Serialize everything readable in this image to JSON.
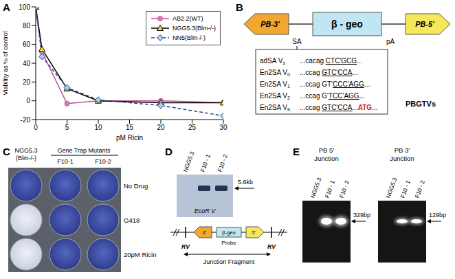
{
  "panel_labels": [
    "A",
    "B",
    "C",
    "D",
    "E"
  ],
  "chart_data": {
    "type": "line",
    "x_label": "pM Ricin",
    "y_label": "Viability as % of control",
    "x": [
      0,
      1,
      5,
      10,
      20,
      30
    ],
    "xlim": [
      0,
      30
    ],
    "xticks": [
      0,
      5,
      10,
      15,
      20,
      25,
      30
    ],
    "ylim": [
      -20,
      100
    ],
    "yticks": [
      -20,
      0,
      20,
      40,
      60,
      80,
      100
    ],
    "grid": false,
    "legend": "upper right",
    "series": [
      {
        "name": "AB2.2(WT)",
        "color": "#c0508f",
        "marker": "circle",
        "line_style": "solid",
        "values": [
          100,
          52,
          -3,
          0,
          0,
          -2
        ]
      },
      {
        "name": "NGG5.3(Blm-/-)",
        "color": "#000000",
        "marker": "triangle",
        "line_style": "solid",
        "values": [
          100,
          55,
          13,
          0,
          -2,
          -2
        ]
      },
      {
        "name": "NN5(Blm-/-)",
        "color": "#2f3f8f",
        "marker": "diamond",
        "line_style": "dashed",
        "values": [
          100,
          47,
          14,
          1,
          -5,
          -16
        ]
      }
    ]
  },
  "diagram_B": {
    "left_arm": "PB-3'",
    "splice_acceptor": "SA",
    "cassette": "β - geo",
    "polyA": "pA",
    "right_arm": "PB-5'",
    "vector_name": "PBGTVs",
    "variants": [
      {
        "name": "adSA V",
        "sub": "s",
        "segments": [
          {
            "text": "...cacag ",
            "style": "plain"
          },
          {
            "text": "CTC'GCG",
            "style": "underline"
          },
          {
            "text": "...",
            "style": "plain"
          }
        ]
      },
      {
        "name": "En2SA V",
        "sub": "0",
        "segments": [
          {
            "text": "...ccag ",
            "style": "plain"
          },
          {
            "text": "GTC'CCA",
            "style": "underline"
          },
          {
            "text": "...",
            "style": "plain"
          }
        ]
      },
      {
        "name": "En2SA V",
        "sub": "1",
        "segments": [
          {
            "text": "...ccag GT'",
            "style": "plain"
          },
          {
            "text": "CCC'AGG",
            "style": "underline"
          },
          {
            "text": "...",
            "style": "plain"
          }
        ]
      },
      {
        "name": "En2SA V",
        "sub": "2",
        "segments": [
          {
            "text": "...ccag G'",
            "style": "plain"
          },
          {
            "text": "TCC'AGG",
            "style": "underline"
          },
          {
            "text": "...",
            "style": "plain"
          }
        ]
      },
      {
        "name": "En2SA V",
        "sub": "K",
        "segments": [
          {
            "text": "...ccag ",
            "style": "plain"
          },
          {
            "text": "GTC'CCA",
            "style": "underline"
          },
          {
            "text": "...",
            "style": "plain"
          },
          {
            "text": "ATG",
            "style": "red"
          },
          {
            "text": "...",
            "style": "plain"
          }
        ]
      }
    ]
  },
  "plate_C": {
    "control": "NGG5.3",
    "control_genotype": "(Blm-/-)",
    "group": "Gene Trap Mutants",
    "clones": [
      "F10-1",
      "F10-2"
    ],
    "conditions": [
      "No Drug",
      "G418",
      "20pM Ricin"
    ],
    "stained": [
      [
        true,
        true,
        true
      ],
      [
        false,
        true,
        true
      ],
      [
        false,
        true,
        true
      ]
    ]
  },
  "blot_D": {
    "lanes": [
      "NGG5.3",
      "F10 - 1",
      "F10 - 2"
    ],
    "band": [
      false,
      true,
      true
    ],
    "size_label": "5.6kb",
    "enzyme": "EcoR V",
    "map": {
      "left": "3'",
      "cassette": "β-geo",
      "right": "5'",
      "probe": "Probe",
      "sites": [
        "RV",
        "RV"
      ],
      "fragment": "Junction Fragment"
    }
  },
  "gels_E": {
    "lanes": [
      "NGG5.3",
      "F10 - 1",
      "F10 - 2"
    ],
    "band": [
      false,
      true,
      true
    ],
    "gels": [
      {
        "title": [
          "PB 5'",
          "Junction"
        ],
        "size_label": "329bp"
      },
      {
        "title": [
          "PB 3'",
          "Junction"
        ],
        "size_label": "129bp"
      }
    ]
  }
}
